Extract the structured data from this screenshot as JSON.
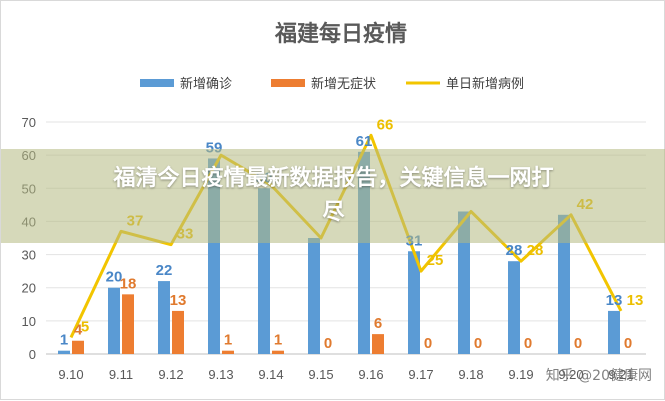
{
  "chart_data": {
    "type": "bar",
    "title": "福建每日疫情",
    "categories": [
      "9.10",
      "9.11",
      "9.12",
      "9.13",
      "9.14",
      "9.15",
      "9.16",
      "9.17",
      "9.18",
      "9.19",
      "9.20",
      "9.21"
    ],
    "ylim": [
      0,
      70
    ],
    "yticks": [
      0,
      10,
      20,
      30,
      40,
      50,
      60,
      70
    ],
    "grid": true,
    "legend_position": "top",
    "series": [
      {
        "name": "新增确诊",
        "kind": "bar",
        "color": "#5b9bd5",
        "label_class": "lbl-blue",
        "values": [
          1,
          20,
          22,
          59,
          50,
          35,
          61,
          31,
          43,
          28,
          42,
          13
        ]
      },
      {
        "name": "新增无症状",
        "kind": "bar",
        "color": "#ed7d31",
        "label_class": "lbl-orange",
        "values": [
          4,
          18,
          13,
          1,
          1,
          0,
          6,
          0,
          0,
          0,
          0,
          0
        ]
      },
      {
        "name": "单日新增病例",
        "kind": "line",
        "color": "#f2c500",
        "label_class": "lbl-yellow",
        "values": [
          5,
          37,
          33,
          60,
          51,
          35,
          66,
          25,
          43,
          28,
          42,
          13
        ]
      }
    ],
    "label_visible": {
      "新增确诊": [
        true,
        true,
        true,
        true,
        true,
        false,
        true,
        true,
        false,
        true,
        false,
        true
      ],
      "新增无症状": [
        true,
        true,
        true,
        true,
        true,
        true,
        true,
        true,
        true,
        true,
        true,
        true
      ],
      "单日新增病例": [
        true,
        true,
        true,
        false,
        false,
        false,
        true,
        true,
        false,
        true,
        true,
        true
      ]
    }
  },
  "overlay": {
    "headline": "福清今日疫情最新数据报告，关键信息一网打尽",
    "watermark": "知乎 @20健康网"
  }
}
